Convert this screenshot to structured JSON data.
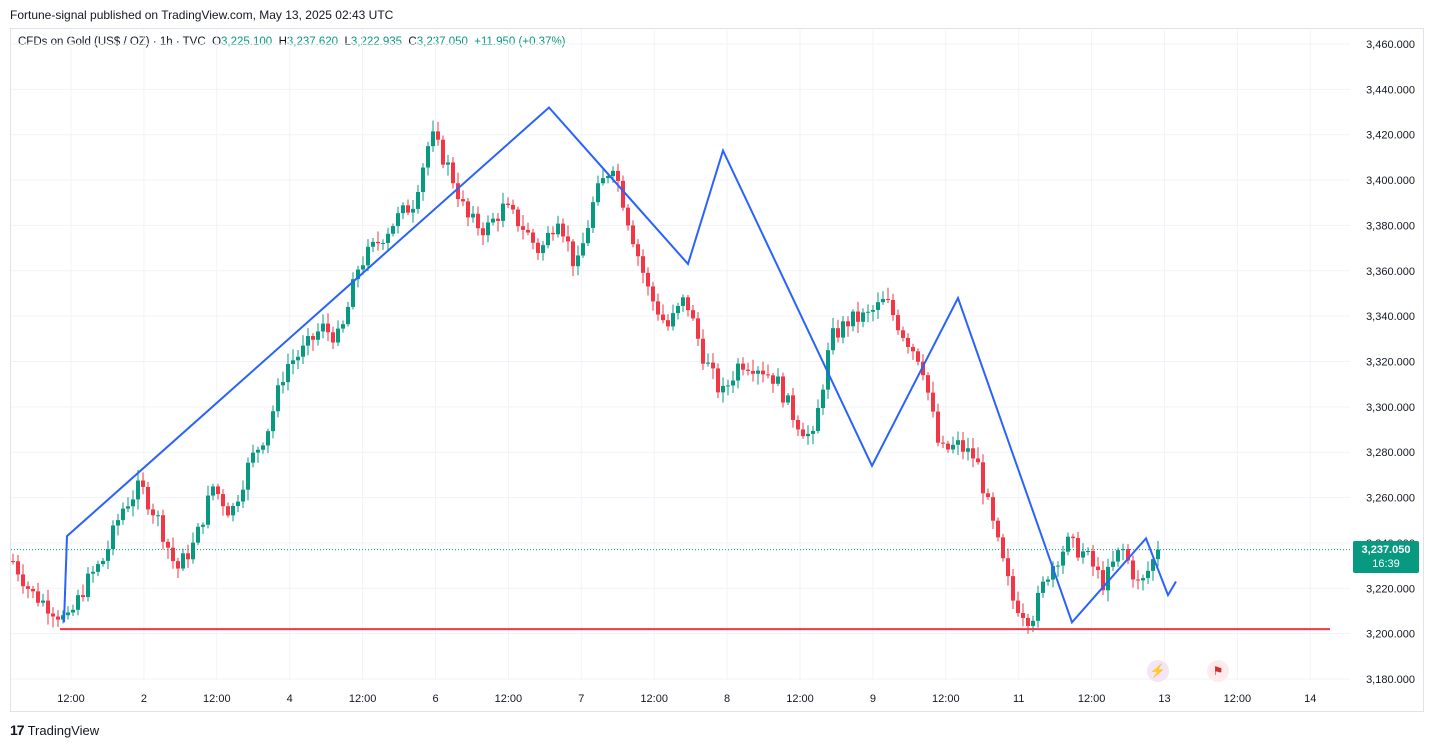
{
  "header": {
    "publisher_line": "Fortune-signal published on TradingView.com, May 13, 2025 02:43 UTC"
  },
  "legend": {
    "symbol": "CFDs on Gold (US$ / OZ) · 1h · TVC",
    "o_label": "O",
    "o_value": "3,225.100",
    "h_label": "H",
    "h_value": "3,237.620",
    "l_label": "L",
    "l_value": "3,222.935",
    "c_label": "C",
    "c_value": "3,237.050",
    "change": "+11.950 (+0.37%)"
  },
  "price_tag": {
    "price": "3,237.050",
    "countdown": "16:39"
  },
  "footer": {
    "brand": "TradingView"
  },
  "icons": {
    "event": "lightning-icon",
    "flag": "us-flag-icon"
  },
  "colors": {
    "up": "#089981",
    "down": "#f23645",
    "pattern": "#2962ff",
    "support": "#f23645",
    "last_price_line": "#089981"
  },
  "chart_data": {
    "type": "candlestick",
    "ylim": [
      3175,
      3465
    ],
    "y_ticks": [
      "3,460.000",
      "3,440.000",
      "3,420.000",
      "3,400.000",
      "3,380.000",
      "3,360.000",
      "3,340.000",
      "3,320.000",
      "3,300.000",
      "3,280.000",
      "3,260.000",
      "3,240.000",
      "3,220.000",
      "3,200.000",
      "3,180.000"
    ],
    "x_tick_labels": [
      "12:00",
      "2",
      "12:00",
      "4",
      "12:00",
      "6",
      "12:00",
      "7",
      "12:00",
      "8",
      "12:00",
      "9",
      "12:00",
      "11",
      "12:00",
      "13",
      "12:00",
      "14"
    ],
    "last_price": 3237.05,
    "support_level": 3202,
    "zigzag_pattern": [
      3205,
      3243,
      3432,
      3363,
      3413,
      3274,
      3348,
      3205,
      3242,
      3217,
      3223
    ],
    "close_path": [
      3232,
      3218,
      3212,
      3205,
      3222,
      3233,
      3255,
      3265,
      3250,
      3228,
      3240,
      3265,
      3253,
      3275,
      3290,
      3318,
      3325,
      3335,
      3330,
      3362,
      3372,
      3382,
      3390,
      3420,
      3405,
      3383,
      3378,
      3388,
      3380,
      3368,
      3385,
      3360,
      3392,
      3408,
      3378,
      3350,
      3335,
      3348,
      3322,
      3305,
      3320,
      3318,
      3312,
      3295,
      3285,
      3330,
      3338,
      3340,
      3347,
      3332,
      3320,
      3280,
      3283,
      3277,
      3245,
      3215,
      3206,
      3228,
      3240,
      3235,
      3222,
      3238,
      3220,
      3237
    ],
    "wick_range": [
      4,
      13
    ],
    "candle_spacing": 5
  }
}
